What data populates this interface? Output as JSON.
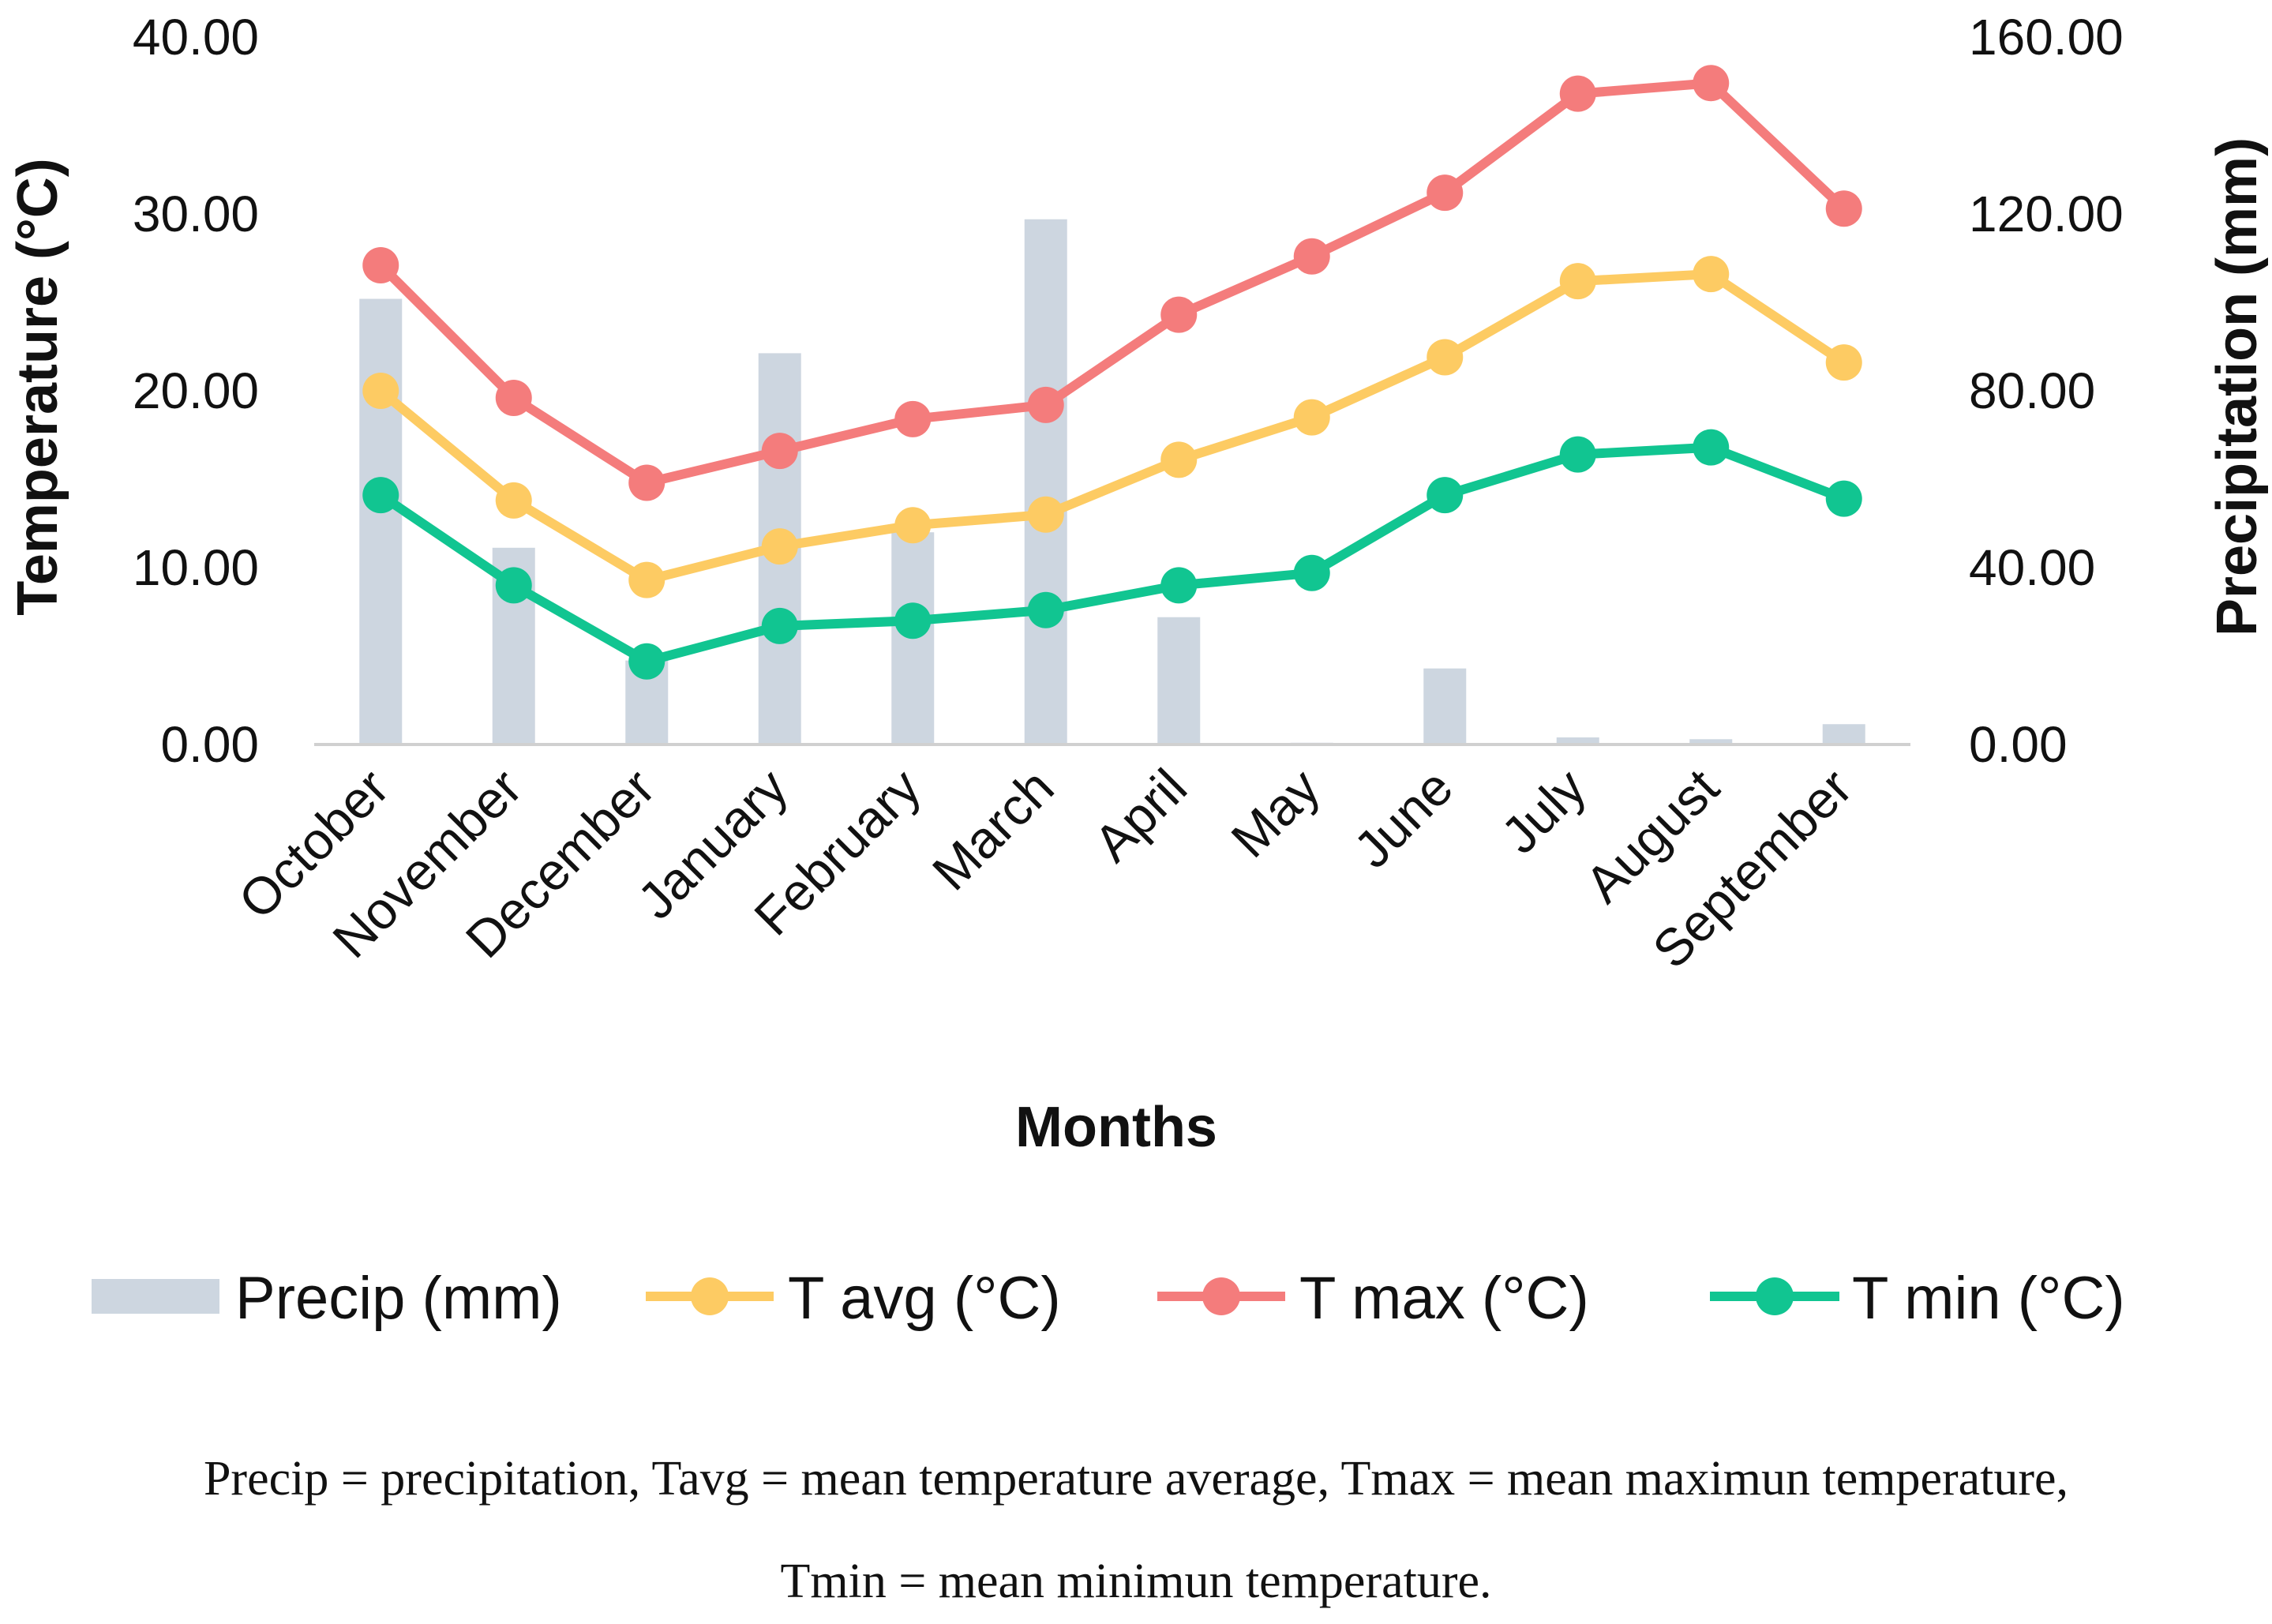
{
  "chart_data": {
    "type": "bar+line",
    "categories": [
      "October",
      "November",
      "December",
      "January",
      "February",
      "March",
      "April",
      "May",
      "June",
      "July",
      "August",
      "September"
    ],
    "bars": {
      "name": "Precip (mm)",
      "axis": "right",
      "color": "#cdd6e0",
      "values": [
        100.8,
        44.5,
        19.0,
        88.5,
        48.0,
        118.8,
        28.8,
        0.4,
        17.2,
        1.6,
        1.2,
        4.6
      ]
    },
    "series": [
      {
        "name": "T avg (°C)",
        "color": "#fdcb63",
        "axis": "left",
        "values": [
          20.0,
          13.8,
          9.3,
          11.2,
          12.4,
          13.0,
          16.1,
          18.5,
          21.9,
          26.2,
          26.6,
          21.6
        ]
      },
      {
        "name": "T max (°C)",
        "color": "#f47c7c",
        "axis": "left",
        "values": [
          27.1,
          19.6,
          14.8,
          16.6,
          18.4,
          19.2,
          24.3,
          27.6,
          31.2,
          36.8,
          37.4,
          30.3
        ]
      },
      {
        "name": "T min (°C)",
        "color": "#11c591",
        "axis": "left",
        "values": [
          14.1,
          9.0,
          4.7,
          6.7,
          7.0,
          7.6,
          9.0,
          9.7,
          14.1,
          16.4,
          16.8,
          13.9
        ]
      }
    ],
    "ylabel": "Temperature (°C)",
    "y2label": "Precipitation (mm)",
    "xlabel": "Months",
    "ylim": [
      0,
      40
    ],
    "y2lim": [
      0,
      160
    ],
    "yticks": [
      "0.00",
      "10.00",
      "20.00",
      "30.00",
      "40.00"
    ],
    "y2ticks": [
      "0.00",
      "40.00",
      "80.00",
      "120.00",
      "160.00"
    ],
    "grid": false,
    "legend_position": "bottom"
  },
  "caption": {
    "line1": "Precip = precipitation, Tavg = mean temperature average, Tmax = mean maximun temperature,",
    "line2": "Tmin = mean minimun temperature."
  }
}
